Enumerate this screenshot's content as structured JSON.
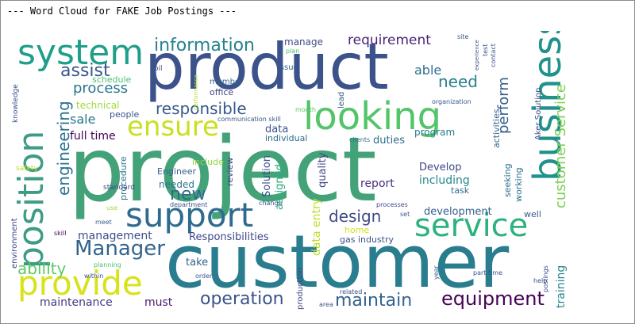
{
  "header": {
    "title": "--- Word Cloud for FAKE Job Postings ---"
  },
  "colors": {
    "frame_border": "#8c8c8c",
    "background": "#ffffff"
  },
  "cloud": {
    "words": {
      "project": "project",
      "customer": "customer",
      "product": "product",
      "support": "support",
      "position": "position",
      "system": "system",
      "looking": "looking",
      "business": "business",
      "service": "service",
      "ensure": "ensure",
      "provide": "provide",
      "Manager": "Manager",
      "information": "information",
      "operation": "operation",
      "maintain": "maintain",
      "equipment": "equipment",
      "customer_service": "customer Service",
      "engineering": "engineering",
      "responsible": "responsible",
      "new": "new",
      "design": "design",
      "ability": "ability",
      "requirement": "requirement",
      "process": "process",
      "assist": "assist",
      "need": "need",
      "perform": "perform",
      "able": "able",
      "management": "management",
      "sale": "sale",
      "full_time": "full time",
      "maintenance": "maintenance",
      "must": "must",
      "Responsibilities": "Responsibilities",
      "training": "training",
      "development": "development",
      "including": "including",
      "Develop": "Develop",
      "report": "report",
      "Solution": "Solution",
      "data": "data",
      "duties": "duties",
      "program": "program",
      "quality": "quality",
      "data_entry": "data entry",
      "assigned": "assigned",
      "take": "take",
      "environment": "environment",
      "technical": "technical",
      "schedule": "schedule",
      "people": "people",
      "Engineer": "Engineer",
      "include": "include",
      "procedure": "procedure",
      "needed": "needed",
      "review": "review",
      "manage": "manage",
      "individual": "individual",
      "home": "home",
      "gas_industry": "gas industry",
      "activities": "activities",
      "working": "working",
      "seeking": "seeking",
      "well": "well",
      "task": "task",
      "office": "office",
      "member": "member",
      "knowledge": "knowledge",
      "lead": "lead",
      "issue": "issue",
      "plan": "plan",
      "oil": "oil",
      "Aker_Solution": "Aker Solution",
      "organization": "organization",
      "communication_skill": "communication skill",
      "month": "month",
      "clients": "clients",
      "safety": "safety",
      "standard": "standard",
      "department": "department",
      "change": "change",
      "processes": "processes",
      "set": "set",
      "use": "use",
      "meet": "meet",
      "skill": "skill",
      "within": "within",
      "planning": "planning",
      "order": "order",
      "production": "production",
      "related": "related",
      "area": "area",
      "year": "year",
      "part_time": "part time",
      "help": "help",
      "postings": "postings",
      "site": "site",
      "test": "test",
      "contact": "contact",
      "performance": "performance",
      "experience": "experience"
    }
  }
}
